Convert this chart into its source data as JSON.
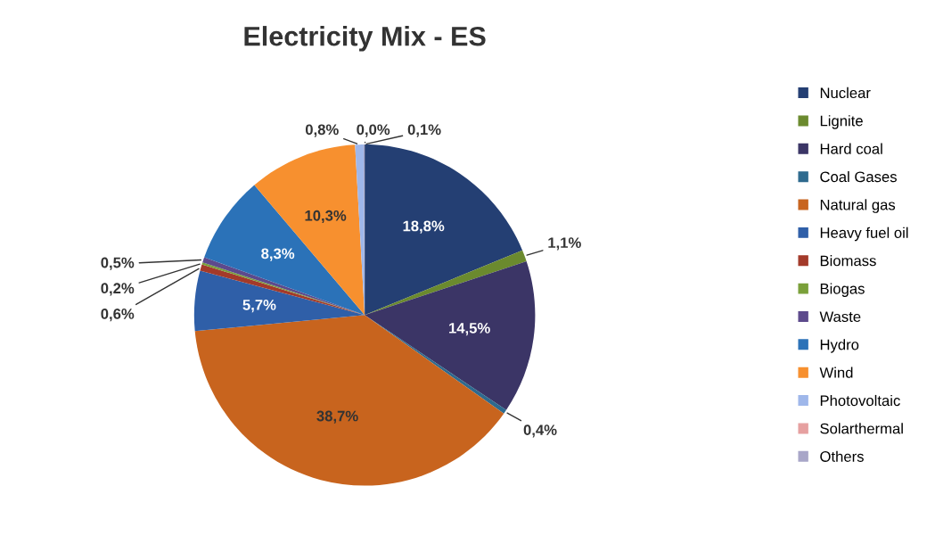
{
  "chart_data": {
    "type": "pie",
    "title": "Electricity Mix - ES",
    "categories": [
      "Nuclear",
      "Lignite",
      "Hard coal",
      "Coal Gases",
      "Natural gas",
      "Heavy fuel oil",
      "Biomass",
      "Biogas",
      "Waste",
      "Hydro",
      "Wind",
      "Photovoltaic",
      "Solarthermal",
      "Others"
    ],
    "values": [
      18.8,
      1.1,
      14.5,
      0.4,
      38.7,
      5.7,
      0.6,
      0.2,
      0.5,
      8.3,
      10.3,
      0.8,
      0.0,
      0.1
    ],
    "value_labels": [
      "18,8%",
      "1,1%",
      "14,5%",
      "0,4%",
      "38,7%",
      "5,7%",
      "0,6%",
      "0,2%",
      "0,5%",
      "8,3%",
      "10,3%",
      "0,8%",
      "0,0%",
      "0,1%"
    ],
    "colors": [
      "#243f73",
      "#6b8a2e",
      "#3b3566",
      "#2e6a8e",
      "#c8641e",
      "#2f5fa8",
      "#a33a2a",
      "#7aa03a",
      "#5d4a8c",
      "#2b72b8",
      "#f7902f",
      "#9fb7ea",
      "#e6a0a0",
      "#a8a6c8"
    ],
    "legend": "right"
  }
}
